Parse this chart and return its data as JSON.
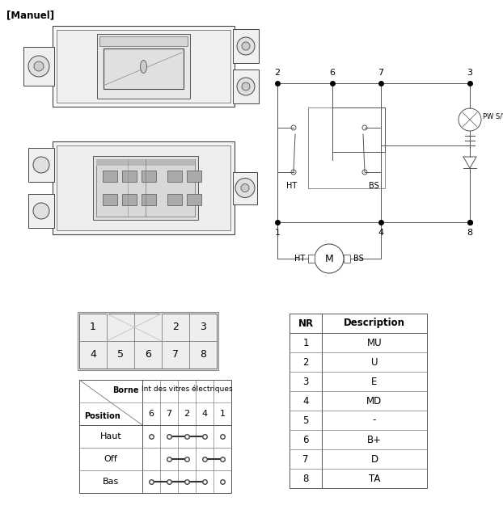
{
  "title": "[Manuel]",
  "bg": "#ffffff",
  "lc": "#555555",
  "tc": "#000000",
  "nr_table": {
    "headers": [
      "NR",
      "Description"
    ],
    "rows": [
      [
        "1",
        "MU"
      ],
      [
        "2",
        "U"
      ],
      [
        "3",
        "E"
      ],
      [
        "4",
        "MD"
      ],
      [
        "5",
        "-"
      ],
      [
        "6",
        "B+"
      ],
      [
        "7",
        "D"
      ],
      [
        "8",
        "TA"
      ]
    ]
  },
  "pin_labels_r1": [
    "1",
    "",
    "",
    "2",
    "3"
  ],
  "pin_labels_r2": [
    "4",
    "5",
    "6",
    "7",
    "8"
  ],
  "pos_cols": [
    "6",
    "7",
    "2",
    "4",
    "1"
  ],
  "pos_rows": [
    "Haut",
    "Off",
    "Bas"
  ]
}
